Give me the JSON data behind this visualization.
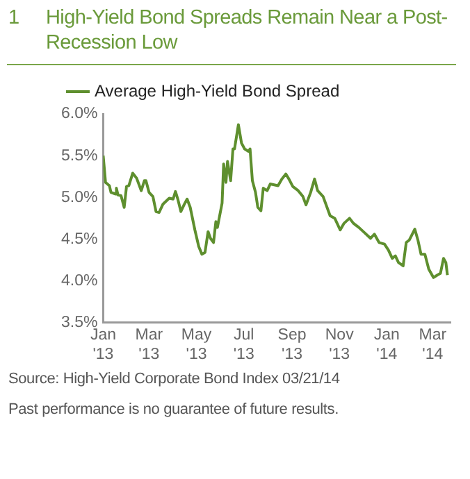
{
  "chart_data": {
    "type": "line",
    "title": "High-Yield Bond Spreads Remain Near a Post-Recession Low",
    "annotations": [
      "1",
      "Source: High-Yield Corporate Bond Index 03/21/14",
      "Past performance is no guarantee of future results."
    ],
    "x": [
      "2013-01-01",
      "2013-01-04",
      "2013-01-09",
      "2013-01-11",
      "2013-01-17",
      "2013-01-18",
      "2013-01-20",
      "2013-01-24",
      "2013-01-28",
      "2013-01-31",
      "2013-02-03",
      "2013-02-08",
      "2013-02-13",
      "2013-02-19",
      "2013-02-23",
      "2013-02-25",
      "2013-03-01",
      "2013-03-06",
      "2013-03-10",
      "2013-03-14",
      "2013-03-19",
      "2013-03-27",
      "2013-04-01",
      "2013-04-04",
      "2013-04-07",
      "2013-04-11",
      "2013-04-15",
      "2013-04-19",
      "2013-04-23",
      "2013-04-29",
      "2013-05-04",
      "2013-05-08",
      "2013-05-12",
      "2013-05-16",
      "2013-05-19",
      "2013-05-23",
      "2013-05-26",
      "2013-05-28",
      "2013-06-03",
      "2013-06-05",
      "2013-06-08",
      "2013-06-10",
      "2013-06-14",
      "2013-06-17",
      "2013-06-19",
      "2013-06-24",
      "2013-06-28",
      "2013-07-02",
      "2013-07-07",
      "2013-07-09",
      "2013-07-12",
      "2013-07-16",
      "2013-07-19",
      "2013-07-23",
      "2013-07-26",
      "2013-07-31",
      "2013-08-04",
      "2013-08-14",
      "2013-08-19",
      "2013-08-24",
      "2013-08-28",
      "2013-09-02",
      "2013-09-09",
      "2013-09-15",
      "2013-09-19",
      "2013-09-25",
      "2013-09-30",
      "2013-10-04",
      "2013-10-11",
      "2013-10-20",
      "2013-10-26",
      "2013-11-02",
      "2013-11-07",
      "2013-11-14",
      "2013-11-19",
      "2013-11-26",
      "2013-12-03",
      "2013-12-11",
      "2013-12-16",
      "2013-12-22",
      "2013-12-29",
      "2014-01-03",
      "2014-01-08",
      "2014-01-12",
      "2014-01-16",
      "2014-01-22",
      "2014-01-26",
      "2014-01-30",
      "2014-02-06",
      "2014-02-10",
      "2014-02-14",
      "2014-02-19",
      "2014-02-24",
      "2014-03-02",
      "2014-03-07",
      "2014-03-11",
      "2014-03-15",
      "2014-03-18",
      "2014-03-20"
    ],
    "series": [
      {
        "name": "Average High-Yield Bond Spread",
        "color": "#5e8f2e",
        "values": [
          5.5,
          5.18,
          5.14,
          5.06,
          5.04,
          5.11,
          5.03,
          5.02,
          4.88,
          5.13,
          5.14,
          5.29,
          5.23,
          5.08,
          5.2,
          5.2,
          5.06,
          5.01,
          4.83,
          4.82,
          4.92,
          4.99,
          4.98,
          5.07,
          4.98,
          4.83,
          4.91,
          4.98,
          4.88,
          4.61,
          4.41,
          4.32,
          4.34,
          4.59,
          4.51,
          4.46,
          4.71,
          4.64,
          4.93,
          5.4,
          5.18,
          5.43,
          5.2,
          5.58,
          5.58,
          5.87,
          5.65,
          5.58,
          5.55,
          5.58,
          5.2,
          5.06,
          4.88,
          4.84,
          5.11,
          5.08,
          5.16,
          5.14,
          5.22,
          5.28,
          5.22,
          5.13,
          5.08,
          5.01,
          4.91,
          5.06,
          5.22,
          5.08,
          5.01,
          4.78,
          4.75,
          4.61,
          4.69,
          4.75,
          4.69,
          4.64,
          4.58,
          4.51,
          4.56,
          4.46,
          4.44,
          4.37,
          4.27,
          4.3,
          4.22,
          4.18,
          4.46,
          4.49,
          4.62,
          4.49,
          4.32,
          4.32,
          4.14,
          4.04,
          4.07,
          4.09,
          4.27,
          4.22,
          4.07
        ]
      }
    ],
    "xlim": [
      "2013-01-01",
      "2014-03-24"
    ],
    "xticks": [
      {
        "value": "2013-01-01",
        "label": "Jan '13"
      },
      {
        "value": "2013-03-01",
        "label": "Mar '13"
      },
      {
        "value": "2013-05-01",
        "label": "May '13"
      },
      {
        "value": "2013-07-01",
        "label": "Jul '13"
      },
      {
        "value": "2013-09-01",
        "label": "Sep '13"
      },
      {
        "value": "2013-11-01",
        "label": "Nov '13"
      },
      {
        "value": "2014-01-01",
        "label": "Jan '14"
      },
      {
        "value": "2014-03-01",
        "label": "Mar '14"
      }
    ],
    "ylim": [
      3.5,
      6.0
    ],
    "yticks": [
      {
        "value": 3.5,
        "label": "3.5%"
      },
      {
        "value": 4.0,
        "label": "4.0%"
      },
      {
        "value": 4.5,
        "label": "4.5%"
      },
      {
        "value": 5.0,
        "label": "5.0%"
      },
      {
        "value": 5.5,
        "label": "5.5%"
      },
      {
        "value": 6.0,
        "label": "6.0%"
      }
    ],
    "grid": false,
    "legend": "top left",
    "marker": "none",
    "line_style": "solid"
  }
}
